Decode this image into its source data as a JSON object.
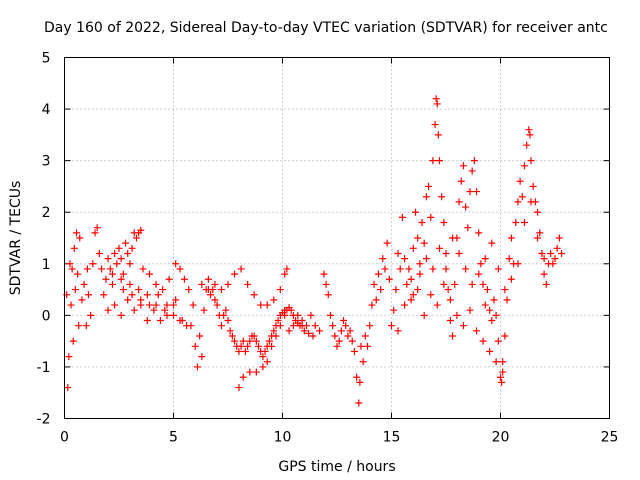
{
  "chart_data": {
    "type": "scatter",
    "title": "Day 160 of 2022, Sidereal Day-to-day VTEC variation (SDTVAR) for receiver antc",
    "xlabel": "GPS time / hours",
    "ylabel": "SDTVAR / TECUs",
    "xlim": [
      0,
      25
    ],
    "ylim": [
      -2,
      5
    ],
    "xticks": [
      0,
      5,
      10,
      15,
      20,
      25
    ],
    "yticks": [
      -2,
      -1,
      0,
      1,
      2,
      3,
      4,
      5
    ],
    "xtick_labels": [
      "0",
      "5",
      "10",
      "15",
      "20",
      "25"
    ],
    "ytick_labels": [
      "-2",
      "-1",
      "0",
      "1",
      "2",
      "3",
      "4",
      "5"
    ],
    "grid": true,
    "marker": "+",
    "color": "#ff0000",
    "series": [
      {
        "name": "SDTVAR",
        "points": [
          [
            0.1,
            0.4
          ],
          [
            0.15,
            -1.4
          ],
          [
            0.2,
            -0.8
          ],
          [
            0.25,
            1.0
          ],
          [
            0.3,
            0.2
          ],
          [
            0.35,
            0.9
          ],
          [
            0.4,
            -0.5
          ],
          [
            0.45,
            1.3
          ],
          [
            0.5,
            0.5
          ],
          [
            0.55,
            1.6
          ],
          [
            0.6,
            0.8
          ],
          [
            0.65,
            -0.2
          ],
          [
            0.7,
            1.5
          ],
          [
            0.8,
            0.3
          ],
          [
            0.9,
            0.6
          ],
          [
            1.0,
            -0.2
          ],
          [
            1.05,
            0.9
          ],
          [
            1.1,
            0.4
          ],
          [
            1.2,
            0.0
          ],
          [
            1.3,
            1.0
          ],
          [
            1.4,
            1.6
          ],
          [
            1.5,
            1.7
          ],
          [
            1.6,
            1.2
          ],
          [
            1.7,
            0.9
          ],
          [
            1.8,
            0.4
          ],
          [
            1.9,
            0.7
          ],
          [
            2.0,
            1.1
          ],
          [
            2.1,
            0.9
          ],
          [
            2.2,
            0.6
          ],
          [
            2.3,
            1.2
          ],
          [
            2.4,
            1.0
          ],
          [
            2.5,
            1.3
          ],
          [
            2.6,
            1.1
          ],
          [
            2.7,
            0.8
          ],
          [
            2.8,
            1.4
          ],
          [
            2.9,
            1.2
          ],
          [
            3.0,
            1.0
          ],
          [
            3.1,
            1.3
          ],
          [
            3.2,
            1.6
          ],
          [
            3.3,
            1.5
          ],
          [
            3.4,
            1.6
          ],
          [
            3.5,
            1.65
          ],
          [
            2.0,
            0.1
          ],
          [
            2.3,
            0.2
          ],
          [
            2.6,
            0.0
          ],
          [
            2.9,
            0.3
          ],
          [
            3.2,
            0.1
          ],
          [
            3.5,
            0.2
          ],
          [
            3.8,
            -0.1
          ],
          [
            4.1,
            0.1
          ],
          [
            4.4,
            -0.1
          ],
          [
            4.7,
            0.0
          ],
          [
            5.0,
            0.2
          ],
          [
            5.3,
            -0.1
          ],
          [
            5.6,
            -0.2
          ],
          [
            2.2,
            0.8
          ],
          [
            2.6,
            0.7
          ],
          [
            3.0,
            0.6
          ],
          [
            3.4,
            0.5
          ],
          [
            3.8,
            0.4
          ],
          [
            4.2,
            0.2
          ],
          [
            4.6,
            0.1
          ],
          [
            5.0,
            0.0
          ],
          [
            5.4,
            -0.1
          ],
          [
            5.8,
            -0.2
          ],
          [
            2.7,
            0.5
          ],
          [
            3.1,
            0.4
          ],
          [
            3.5,
            0.3
          ],
          [
            3.9,
            0.2
          ],
          [
            4.3,
            0.4
          ],
          [
            4.7,
            0.2
          ],
          [
            5.1,
            0.3
          ],
          [
            3.6,
            0.9
          ],
          [
            3.9,
            0.8
          ],
          [
            4.2,
            0.6
          ],
          [
            4.5,
            0.5
          ],
          [
            4.8,
            0.7
          ],
          [
            5.1,
            1.0
          ],
          [
            5.3,
            0.9
          ],
          [
            5.5,
            0.7
          ],
          [
            5.7,
            0.5
          ],
          [
            5.9,
            0.2
          ],
          [
            6.0,
            -0.6
          ],
          [
            6.1,
            -1.0
          ],
          [
            6.2,
            -0.4
          ],
          [
            6.3,
            -0.8
          ],
          [
            6.4,
            0.1
          ],
          [
            6.5,
            0.5
          ],
          [
            6.6,
            0.7
          ],
          [
            6.7,
            0.4
          ],
          [
            6.8,
            0.5
          ],
          [
            6.9,
            0.3
          ],
          [
            7.0,
            0.2
          ],
          [
            7.1,
            0.0
          ],
          [
            7.2,
            -0.2
          ],
          [
            7.3,
            0.0
          ],
          [
            7.4,
            0.1
          ],
          [
            7.5,
            -0.1
          ],
          [
            7.6,
            -0.3
          ],
          [
            7.7,
            -0.4
          ],
          [
            7.8,
            -0.5
          ],
          [
            7.9,
            -0.6
          ],
          [
            8.0,
            -0.7
          ],
          [
            8.1,
            -0.6
          ],
          [
            8.2,
            -0.5
          ],
          [
            8.3,
            -0.7
          ],
          [
            8.4,
            -0.6
          ],
          [
            8.5,
            -0.5
          ],
          [
            8.6,
            -0.4
          ],
          [
            8.7,
            -0.4
          ],
          [
            8.8,
            -0.5
          ],
          [
            8.9,
            -0.6
          ],
          [
            9.0,
            -0.7
          ],
          [
            9.1,
            -0.8
          ],
          [
            9.2,
            -0.7
          ],
          [
            9.3,
            -0.6
          ],
          [
            9.4,
            -0.5
          ],
          [
            9.5,
            -0.4
          ],
          [
            9.6,
            -0.3
          ],
          [
            9.7,
            -0.2
          ],
          [
            9.8,
            -0.1
          ],
          [
            9.9,
            0.0
          ],
          [
            10.0,
            0.05
          ],
          [
            10.1,
            0.1
          ],
          [
            10.2,
            0.1
          ],
          [
            10.3,
            0.15
          ],
          [
            10.4,
            0.1
          ],
          [
            10.5,
            0.0
          ],
          [
            10.6,
            -0.1
          ],
          [
            10.7,
            -0.15
          ],
          [
            10.8,
            -0.2
          ],
          [
            10.9,
            -0.2
          ],
          [
            11.0,
            -0.3
          ],
          [
            11.2,
            -0.35
          ],
          [
            11.4,
            -0.4
          ],
          [
            6.3,
            0.6
          ],
          [
            6.6,
            0.5
          ],
          [
            6.9,
            0.6
          ],
          [
            7.2,
            0.5
          ],
          [
            7.5,
            0.6
          ],
          [
            7.8,
            0.8
          ],
          [
            8.1,
            0.9
          ],
          [
            8.4,
            0.6
          ],
          [
            8.7,
            0.4
          ],
          [
            9.0,
            0.2
          ],
          [
            9.3,
            0.2
          ],
          [
            9.6,
            0.3
          ],
          [
            9.9,
            0.5
          ],
          [
            10.1,
            0.8
          ],
          [
            10.2,
            0.9
          ],
          [
            8.0,
            -1.4
          ],
          [
            8.2,
            -1.2
          ],
          [
            8.5,
            -1.1
          ],
          [
            8.8,
            -1.1
          ],
          [
            9.1,
            -1.0
          ],
          [
            9.3,
            -0.9
          ],
          [
            9.5,
            -0.6
          ],
          [
            9.7,
            -0.4
          ],
          [
            9.9,
            -0.2
          ],
          [
            10.1,
            0.0
          ],
          [
            10.3,
            -0.3
          ],
          [
            10.5,
            -0.2
          ],
          [
            10.7,
            0.0
          ],
          [
            10.9,
            -0.1
          ],
          [
            11.1,
            -0.2
          ],
          [
            11.3,
            0.0
          ],
          [
            11.5,
            -0.2
          ],
          [
            11.7,
            -0.3
          ],
          [
            11.9,
            0.8
          ],
          [
            12.0,
            0.6
          ],
          [
            12.1,
            0.4
          ],
          [
            12.2,
            0.0
          ],
          [
            12.3,
            -0.2
          ],
          [
            12.4,
            -0.4
          ],
          [
            12.5,
            -0.6
          ],
          [
            12.6,
            -0.5
          ],
          [
            12.7,
            -0.3
          ],
          [
            12.8,
            -0.1
          ],
          [
            12.9,
            -0.2
          ],
          [
            13.0,
            -0.4
          ],
          [
            13.1,
            -0.3
          ],
          [
            13.2,
            -0.5
          ],
          [
            13.3,
            -0.7
          ],
          [
            13.4,
            -1.2
          ],
          [
            13.5,
            -1.7
          ],
          [
            13.55,
            -1.3
          ],
          [
            13.6,
            -0.6
          ],
          [
            13.7,
            -0.9
          ],
          [
            13.8,
            -0.4
          ],
          [
            13.9,
            -0.6
          ],
          [
            14.0,
            -0.2
          ],
          [
            14.1,
            0.2
          ],
          [
            14.2,
            0.6
          ],
          [
            14.3,
            0.3
          ],
          [
            14.4,
            0.8
          ],
          [
            14.5,
            0.5
          ],
          [
            14.6,
            1.1
          ],
          [
            14.7,
            0.9
          ],
          [
            14.8,
            1.4
          ],
          [
            14.9,
            0.7
          ],
          [
            15.0,
            -0.2
          ],
          [
            15.1,
            0.1
          ],
          [
            15.2,
            0.5
          ],
          [
            15.3,
            1.2
          ],
          [
            15.4,
            0.9
          ],
          [
            15.5,
            1.9
          ],
          [
            15.6,
            1.1
          ],
          [
            15.7,
            0.6
          ],
          [
            15.8,
            0.9
          ],
          [
            15.9,
            0.3
          ],
          [
            16.0,
            1.3
          ],
          [
            16.1,
            2.0
          ],
          [
            16.2,
            1.5
          ],
          [
            16.3,
            1.0
          ],
          [
            16.4,
            1.8
          ],
          [
            16.5,
            1.4
          ],
          [
            16.6,
            2.3
          ],
          [
            16.7,
            2.5
          ],
          [
            16.8,
            1.9
          ],
          [
            16.9,
            3.0
          ],
          [
            17.0,
            3.7
          ],
          [
            17.05,
            4.2
          ],
          [
            17.1,
            4.1
          ],
          [
            17.15,
            3.5
          ],
          [
            17.2,
            3.0
          ],
          [
            17.3,
            2.3
          ],
          [
            17.4,
            1.8
          ],
          [
            17.5,
            1.2
          ],
          [
            17.6,
            0.5
          ],
          [
            17.7,
            -0.1
          ],
          [
            17.8,
            -0.4
          ],
          [
            17.9,
            0.6
          ],
          [
            18.0,
            1.5
          ],
          [
            18.1,
            2.2
          ],
          [
            18.2,
            2.6
          ],
          [
            18.3,
            2.9
          ],
          [
            18.4,
            2.1
          ],
          [
            18.5,
            1.7
          ],
          [
            18.6,
            2.4
          ],
          [
            18.7,
            2.8
          ],
          [
            18.8,
            3.0
          ],
          [
            18.9,
            2.4
          ],
          [
            19.0,
            1.6
          ],
          [
            19.1,
            1.0
          ],
          [
            19.2,
            0.6
          ],
          [
            19.3,
            0.2
          ],
          [
            19.4,
            0.5
          ],
          [
            19.5,
            0.1
          ],
          [
            19.6,
            -0.1
          ],
          [
            19.7,
            0.3
          ],
          [
            19.8,
            0.0
          ],
          [
            19.9,
            -0.5
          ],
          [
            20.0,
            -1.2
          ],
          [
            20.05,
            -1.3
          ],
          [
            20.1,
            -0.9
          ],
          [
            20.2,
            -0.4
          ],
          [
            20.3,
            0.3
          ],
          [
            20.4,
            1.1
          ],
          [
            20.5,
            1.5
          ],
          [
            20.6,
            1.0
          ],
          [
            20.7,
            1.8
          ],
          [
            20.8,
            2.2
          ],
          [
            20.9,
            2.6
          ],
          [
            21.0,
            2.3
          ],
          [
            21.1,
            2.9
          ],
          [
            21.2,
            3.3
          ],
          [
            21.3,
            3.6
          ],
          [
            21.35,
            3.5
          ],
          [
            21.4,
            3.0
          ],
          [
            21.5,
            2.5
          ],
          [
            21.6,
            2.2
          ],
          [
            21.7,
            2.0
          ],
          [
            21.8,
            1.6
          ],
          [
            21.9,
            1.2
          ],
          [
            22.0,
            0.8
          ],
          [
            22.1,
            0.6
          ],
          [
            22.2,
            1.0
          ],
          [
            22.3,
            1.2
          ],
          [
            22.4,
            1.0
          ],
          [
            22.5,
            1.1
          ],
          [
            22.6,
            1.3
          ],
          [
            22.7,
            1.5
          ],
          [
            22.8,
            1.2
          ],
          [
            16.0,
            0.4
          ],
          [
            16.3,
            0.8
          ],
          [
            16.6,
            1.1
          ],
          [
            16.9,
            0.9
          ],
          [
            17.2,
            1.3
          ],
          [
            17.5,
            0.9
          ],
          [
            17.8,
            1.5
          ],
          [
            18.1,
            1.2
          ],
          [
            18.4,
            0.9
          ],
          [
            18.7,
            0.6
          ],
          [
            19.0,
            0.8
          ],
          [
            19.3,
            1.1
          ],
          [
            19.6,
            1.4
          ],
          [
            19.9,
            0.9
          ],
          [
            20.2,
            0.5
          ],
          [
            20.5,
            0.7
          ],
          [
            20.8,
            1.0
          ],
          [
            21.1,
            1.8
          ],
          [
            21.4,
            2.2
          ],
          [
            21.7,
            1.5
          ],
          [
            22.0,
            1.1
          ],
          [
            15.3,
            -0.3
          ],
          [
            15.6,
            0.2
          ],
          [
            15.9,
            0.7
          ],
          [
            16.2,
            0.5
          ],
          [
            16.5,
            0.0
          ],
          [
            16.8,
            0.4
          ],
          [
            17.1,
            0.2
          ],
          [
            17.4,
            0.6
          ],
          [
            17.7,
            0.3
          ],
          [
            18.0,
            0.0
          ],
          [
            18.3,
            -0.2
          ],
          [
            18.6,
            0.1
          ],
          [
            18.9,
            -0.3
          ],
          [
            19.2,
            -0.5
          ],
          [
            19.5,
            -0.7
          ],
          [
            19.8,
            -0.9
          ],
          [
            20.1,
            -1.1
          ]
        ]
      }
    ]
  }
}
